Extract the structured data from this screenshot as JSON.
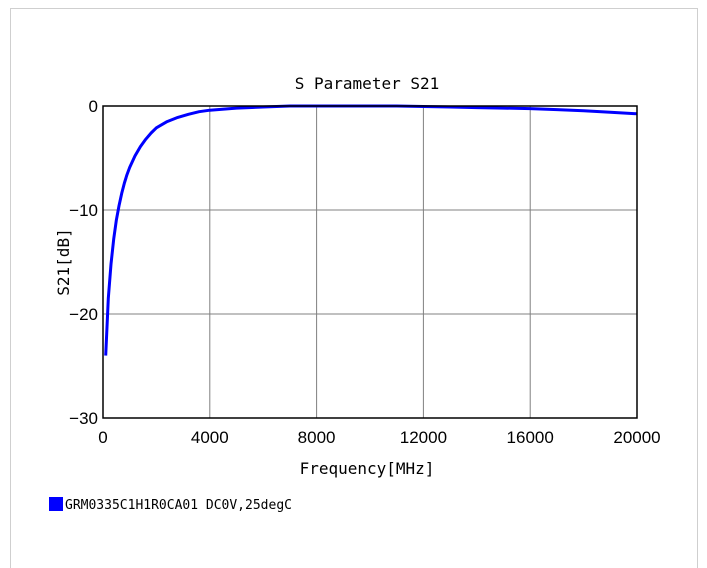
{
  "colors": {
    "series": "#0000ff",
    "grid": "#808080",
    "frame": "#000000"
  },
  "chart_data": {
    "type": "line",
    "title": "S Parameter S21",
    "xlabel": "Frequency[MHz]",
    "ylabel": "S21[dB]",
    "xlim": [
      0,
      20000
    ],
    "ylim": [
      -30,
      0
    ],
    "xticks": [
      "0",
      "4000",
      "8000",
      "12000",
      "16000",
      "20000"
    ],
    "yticks": [
      "0",
      "−10",
      "−20",
      "−30"
    ],
    "grid": true,
    "legend_position": "bottom-left",
    "series": [
      {
        "name": "GRM0335C1H1R0CA01 DC0V,25degC",
        "x": [
          100,
          200,
          300,
          400,
          500,
          600,
          700,
          800,
          900,
          1000,
          1200,
          1400,
          1600,
          1800,
          2000,
          2400,
          2800,
          3200,
          3600,
          4000,
          5000,
          6000,
          7000,
          8000,
          9000,
          10000,
          11000,
          12000,
          13000,
          14000,
          15000,
          16000,
          17000,
          18000,
          19000,
          20000
        ],
        "y": [
          -24.0,
          -18.5,
          -15.2,
          -12.8,
          -11.0,
          -9.6,
          -8.4,
          -7.4,
          -6.6,
          -5.9,
          -4.8,
          -3.9,
          -3.2,
          -2.6,
          -2.1,
          -1.5,
          -1.1,
          -0.8,
          -0.55,
          -0.4,
          -0.2,
          -0.1,
          0.0,
          0.0,
          0.0,
          0.0,
          0.0,
          -0.05,
          -0.1,
          -0.15,
          -0.2,
          -0.25,
          -0.35,
          -0.45,
          -0.6,
          -0.75
        ]
      }
    ]
  }
}
